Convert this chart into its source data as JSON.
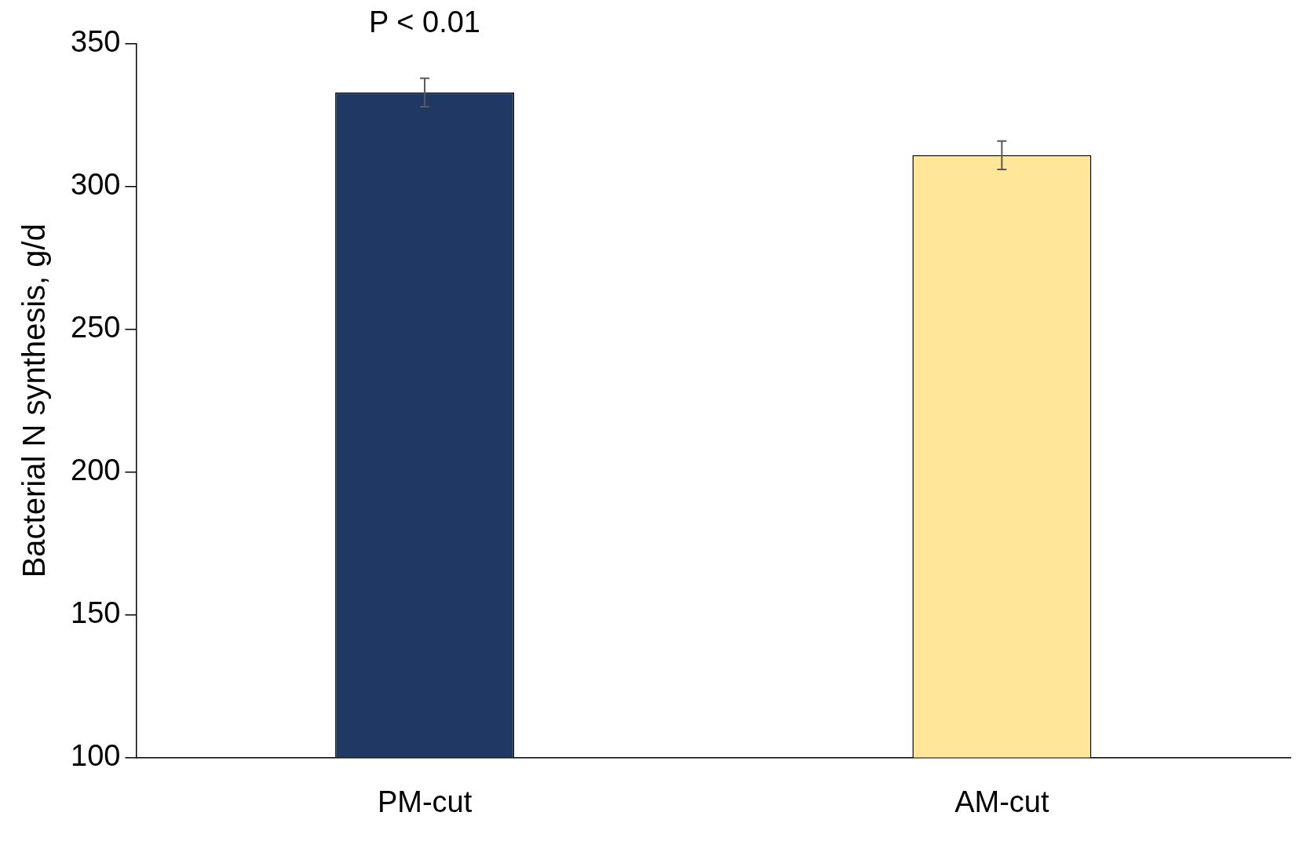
{
  "chart_data": {
    "type": "bar",
    "ylabel": "Bacterial N synthesis, g/d",
    "categories": [
      "PM-cut",
      "AM-cut"
    ],
    "values": [
      333,
      311
    ],
    "colors": [
      "#203864",
      "#ffe699"
    ],
    "errors": [
      5,
      5
    ],
    "ylim": [
      100,
      350
    ],
    "yticks": [
      100,
      150,
      200,
      250,
      300,
      350
    ],
    "grid": false,
    "legend": false,
    "annotations": [
      "P < 0.01"
    ]
  }
}
